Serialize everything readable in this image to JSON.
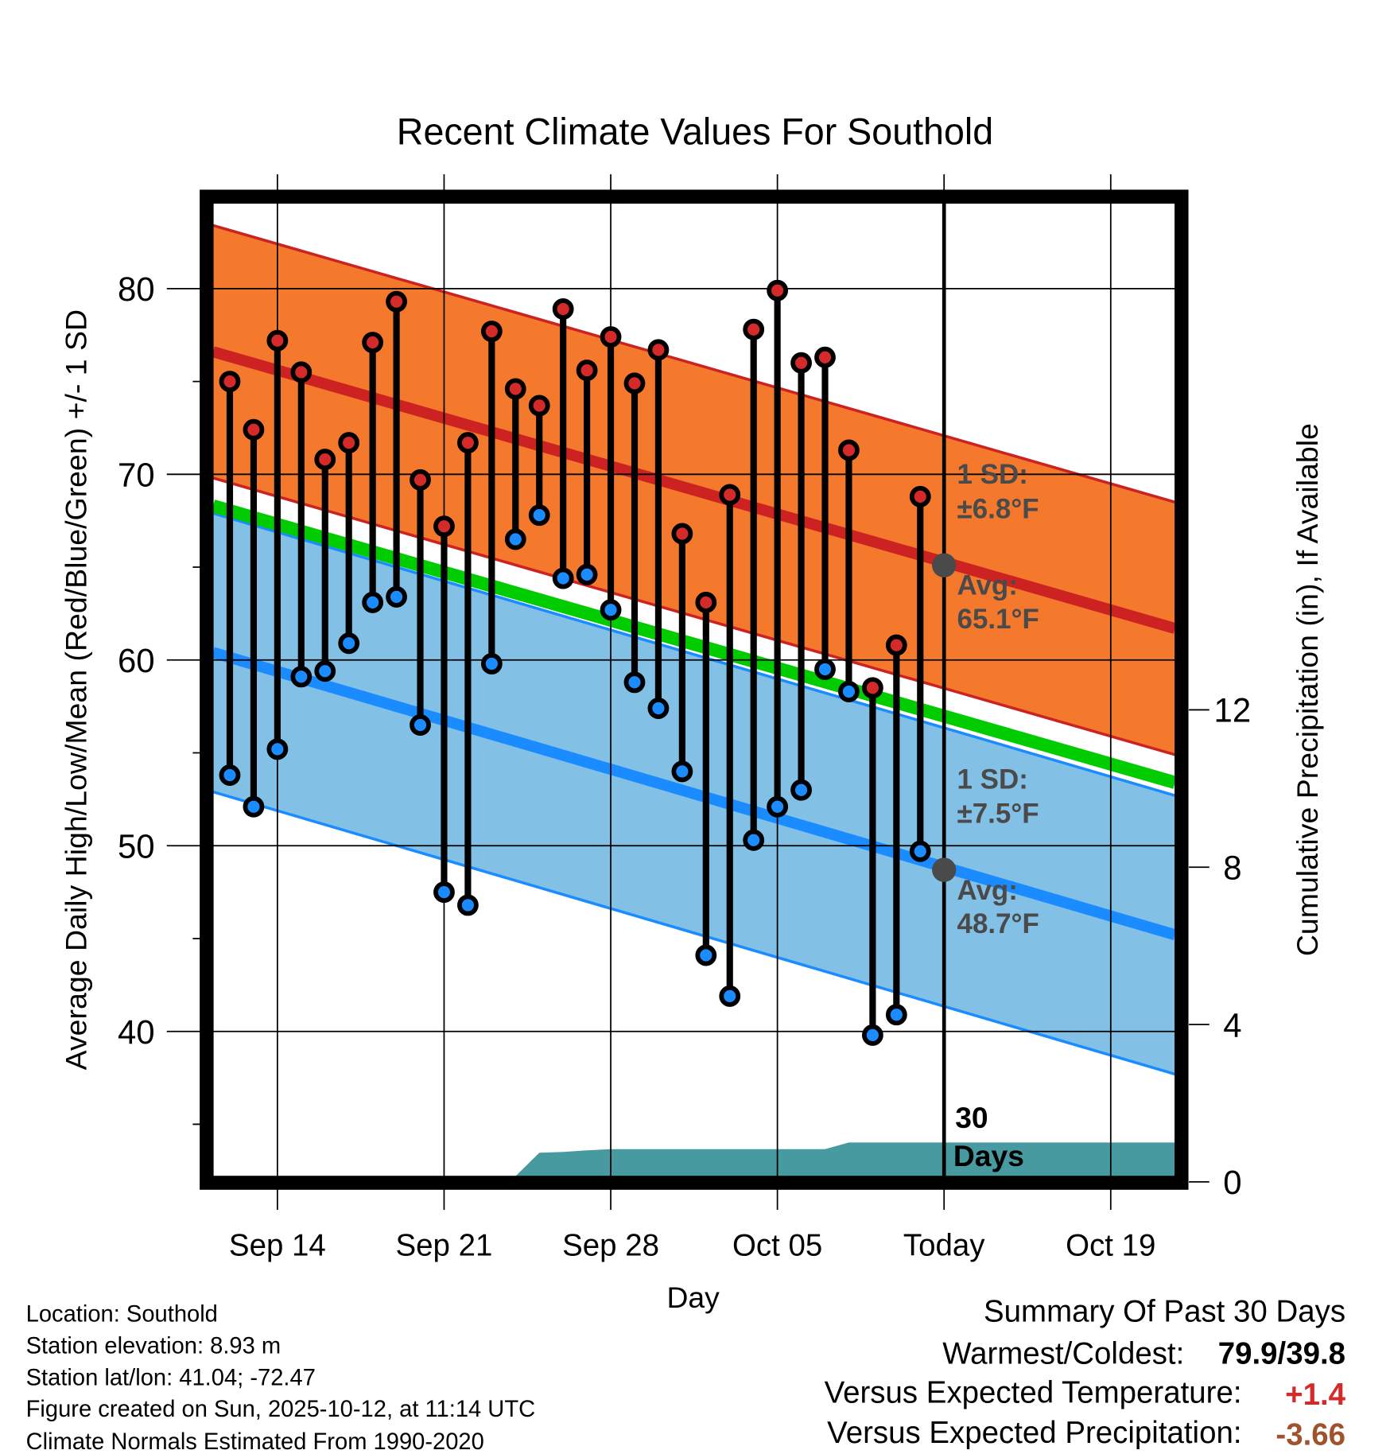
{
  "chart_data": {
    "type": "line",
    "title": "Recent Climate Values For Southold",
    "xlabel": "Day",
    "ylabel": "Average Daily High/Low/Mean (Red/Blue/Green) +/- 1 SD",
    "ylabel_right": "Cumulative Precipitation (in), If Available",
    "grid": true,
    "ylim": [
      32.2,
      84.6
    ],
    "y_ticks": [
      40,
      50,
      60,
      70,
      80
    ],
    "y_minor_ticks": [
      35,
      45,
      55,
      65,
      75
    ],
    "y_right_lim": [
      0,
      24
    ],
    "y_right_ticks": [
      0,
      4,
      8,
      12
    ],
    "x_day_range": [
      -0.7,
      39.7
    ],
    "x_ticks": [
      {
        "day": 2,
        "label": "Sep 14"
      },
      {
        "day": 9,
        "label": "Sep 21"
      },
      {
        "day": 16,
        "label": "Sep 28"
      },
      {
        "day": 23,
        "label": "Oct 05"
      },
      {
        "day": 30,
        "label": "Today"
      },
      {
        "day": 37,
        "label": "Oct 19"
      }
    ],
    "x_start_date": "Sep 12",
    "highs": [
      75.0,
      72.4,
      77.2,
      75.5,
      70.8,
      71.7,
      77.1,
      79.3,
      69.7,
      67.2,
      71.7,
      77.7,
      74.6,
      73.7,
      78.9,
      75.6,
      77.4,
      74.9,
      76.7,
      66.8,
      63.1,
      68.9,
      77.8,
      79.9,
      76.0,
      76.3,
      71.3,
      58.5,
      60.8,
      68.8
    ],
    "lows": [
      53.8,
      52.1,
      55.2,
      59.1,
      59.4,
      60.9,
      63.1,
      63.4,
      56.5,
      47.5,
      46.8,
      59.8,
      66.5,
      67.8,
      64.4,
      64.6,
      62.7,
      58.8,
      57.4,
      54.0,
      44.1,
      41.9,
      50.3,
      52.1,
      53.0,
      59.5,
      58.3,
      39.8,
      40.9,
      49.7
    ],
    "normal_high": {
      "start": 76.6,
      "end": 61.7,
      "sd": 6.8
    },
    "normal_low": {
      "start": 60.4,
      "end": 45.2,
      "sd": 7.5
    },
    "normal_mean": {
      "start": 68.3,
      "end": 53.4
    },
    "precip_cumulative": [
      0,
      0,
      0,
      0,
      0,
      0,
      0,
      0,
      0,
      0,
      0,
      0,
      0,
      0.74,
      0.76,
      0.8,
      0.83,
      0.83,
      0.83,
      0.83,
      0.83,
      0.83,
      0.83,
      0.83,
      0.83,
      0.83,
      1.0,
      1.0,
      1.0,
      1.0,
      1.0,
      1.0,
      1.0,
      1.0,
      1.0,
      1.0,
      1.0,
      1.0,
      1.0,
      1.0,
      1.0
    ],
    "annotations": {
      "high_sd_line1": "1 SD:",
      "high_sd_line2": "±6.8°F",
      "high_avg_line1": "Avg:",
      "high_avg_line2": "65.1°F",
      "low_sd_line1": "1 SD:",
      "low_sd_line2": "±7.5°F",
      "low_avg_line1": "Avg:",
      "low_avg_line2": "48.7°F",
      "window_line1": "30",
      "window_line2": "Days"
    },
    "today_high_avg": 65.1,
    "today_low_avg": 48.7
  },
  "colors": {
    "high_band": "#f4792d",
    "high_line": "#cc2222",
    "low_band": "#82c0e6",
    "low_line": "#1a8cff",
    "mean_line": "#00cc00",
    "precip": "#479a9f",
    "annot": "#4a4a4a",
    "temp_anom": "#d42a2a",
    "precip_anom": "#a0522d"
  },
  "info": {
    "location": "Location: Southold",
    "elevation": "Station elevation: 8.93 m",
    "latlon": "Station lat/lon: 41.04; -72.47",
    "created": "Figure created on Sun, 2025-10-12, at 11:14 UTC",
    "normals": "Climate Normals Estimated From 1990-2020"
  },
  "summary": {
    "title": "Summary Of Past 30 Days",
    "warm_label": "Warmest/Coldest:",
    "warm_value": "79.9/39.8",
    "temp_label": "Versus Expected Temperature:",
    "temp_value": "+1.4",
    "precip_label": "Versus Expected Precipitation:",
    "precip_value": "-3.66"
  }
}
